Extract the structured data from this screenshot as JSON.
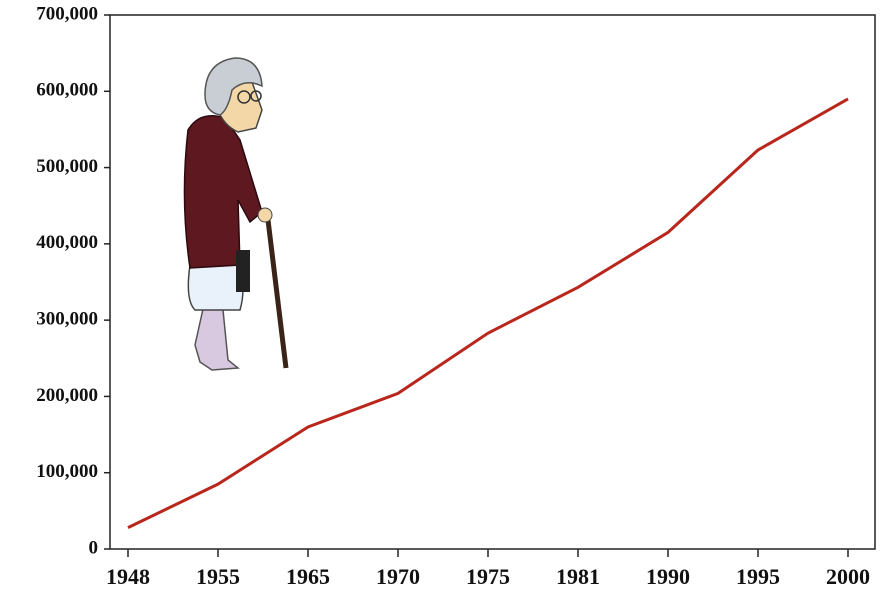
{
  "chart_data": {
    "type": "line",
    "categories": [
      "1948",
      "1955",
      "1965",
      "1970",
      "1975",
      "1981",
      "1990",
      "1995",
      "2000"
    ],
    "values": [
      28000,
      85000,
      160000,
      204000,
      283000,
      343000,
      415000,
      523000,
      590000
    ],
    "color": "#b8261c",
    "ylim": [
      0,
      700000
    ],
    "yticks": [
      0,
      {
        "value": 100000,
        "label": "100,000"
      },
      {
        "value": 200000,
        "label": "200,000"
      },
      {
        "value": 300000,
        "label": "300,000"
      },
      {
        "value": 400000,
        "label": "400,000"
      },
      {
        "value": 500000,
        "label": "500,000"
      },
      {
        "value": 600000,
        "label": "600,000"
      },
      {
        "value": 700000,
        "label": "700,000"
      }
    ],
    "grid": false
  }
}
